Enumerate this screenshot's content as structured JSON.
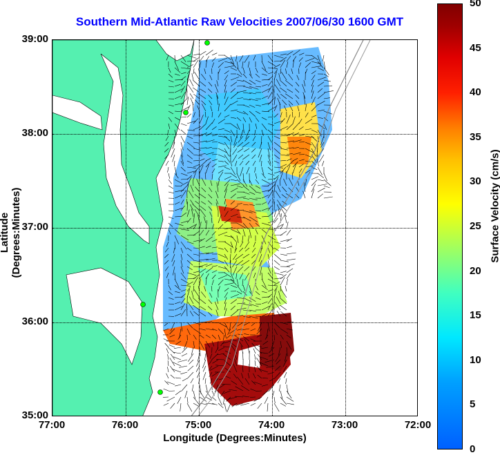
{
  "title": "Southern Mid-Atlantic Raw Velocities 2007/06/30 1600 GMT",
  "xlabel": "Longitude (Degrees:Minutes)",
  "ylabel": "Latitude (Degrees:Minutes)",
  "x_ticks": [
    "77:00",
    "76:00",
    "75:00",
    "74:00",
    "73:00",
    "72:00"
  ],
  "y_ticks": [
    "39:00",
    "38:00",
    "37:00",
    "36:00",
    "35:00"
  ],
  "colorbar": {
    "label": "Surface Velocity (cm/s)",
    "ticks": [
      "50",
      "45",
      "40",
      "35",
      "30",
      "25",
      "20",
      "15",
      "10",
      "5",
      "0"
    ],
    "range": [
      0,
      50
    ]
  },
  "colors": {
    "title": "#0000ff",
    "land": "#55f0b0",
    "arrow": "#000000"
  }
}
